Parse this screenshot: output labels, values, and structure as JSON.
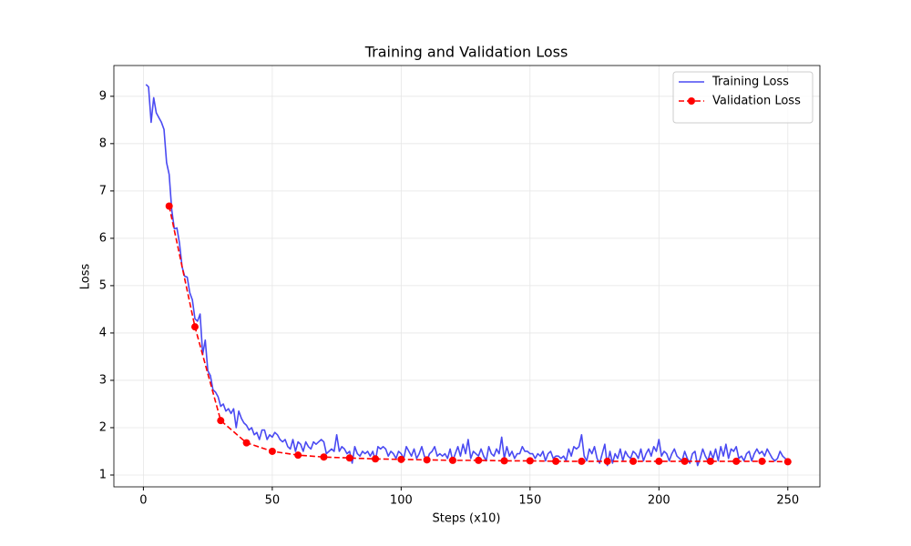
{
  "chart_data": {
    "type": "line",
    "title": "Training and Validation Loss",
    "xlabel": "Steps (x10)",
    "ylabel": "Loss",
    "xlim": [
      -11.45,
      262.45
    ],
    "ylim": [
      0.75,
      9.65
    ],
    "xticks": [
      0,
      50,
      100,
      150,
      200,
      250
    ],
    "yticks": [
      1,
      2,
      3,
      4,
      5,
      6,
      7,
      8,
      9
    ],
    "grid": true,
    "legend": "upper right",
    "series": [
      {
        "name": "Training Loss",
        "color": "#4a4af2",
        "linestyle": "solid",
        "x": [
          1,
          2,
          3,
          4,
          5,
          6,
          7,
          8,
          9,
          10,
          11,
          12,
          13,
          14,
          15,
          16,
          17,
          18,
          19,
          20,
          21,
          22,
          23,
          24,
          25,
          26,
          27,
          28,
          29,
          30,
          31,
          32,
          33,
          34,
          35,
          36,
          37,
          38,
          39,
          40,
          41,
          42,
          43,
          44,
          45,
          46,
          47,
          48,
          49,
          50,
          51,
          52,
          53,
          54,
          55,
          56,
          57,
          58,
          59,
          60,
          61,
          62,
          63,
          64,
          65,
          66,
          67,
          68,
          69,
          70,
          71,
          72,
          73,
          74,
          75,
          76,
          77,
          78,
          79,
          80,
          81,
          82,
          83,
          84,
          85,
          86,
          87,
          88,
          89,
          90,
          91,
          92,
          93,
          94,
          95,
          96,
          97,
          98,
          99,
          100,
          101,
          102,
          103,
          104,
          105,
          106,
          107,
          108,
          109,
          110,
          111,
          112,
          113,
          114,
          115,
          116,
          117,
          118,
          119,
          120,
          121,
          122,
          123,
          124,
          125,
          126,
          127,
          128,
          129,
          130,
          131,
          132,
          133,
          134,
          135,
          136,
          137,
          138,
          139,
          140,
          141,
          142,
          143,
          144,
          145,
          146,
          147,
          148,
          149,
          150,
          151,
          152,
          153,
          154,
          155,
          156,
          157,
          158,
          159,
          160,
          161,
          162,
          163,
          164,
          165,
          166,
          167,
          168,
          169,
          170,
          171,
          172,
          173,
          174,
          175,
          176,
          177,
          178,
          179,
          180,
          181,
          182,
          183,
          184,
          185,
          186,
          187,
          188,
          189,
          190,
          191,
          192,
          193,
          194,
          195,
          196,
          197,
          198,
          199,
          200,
          201,
          202,
          203,
          204,
          205,
          206,
          207,
          208,
          209,
          210,
          211,
          212,
          213,
          214,
          215,
          216,
          217,
          218,
          219,
          220,
          221,
          222,
          223,
          224,
          225,
          226,
          227,
          228,
          229,
          230,
          231,
          232,
          233,
          234,
          235,
          236,
          237,
          238,
          239,
          240,
          241,
          242,
          243,
          244,
          245,
          246,
          247,
          248,
          249,
          250
        ],
        "values": [
          9.25,
          9.2,
          8.45,
          8.97,
          8.65,
          8.55,
          8.45,
          8.3,
          7.6,
          7.35,
          6.6,
          6.2,
          6.22,
          5.9,
          5.4,
          5.2,
          5.18,
          4.85,
          4.7,
          4.3,
          4.25,
          4.4,
          3.55,
          3.85,
          3.2,
          3.1,
          2.8,
          2.75,
          2.65,
          2.45,
          2.5,
          2.35,
          2.4,
          2.3,
          2.4,
          2.0,
          2.35,
          2.2,
          2.1,
          2.05,
          1.95,
          2.0,
          1.85,
          1.9,
          1.75,
          1.95,
          1.95,
          1.75,
          1.85,
          1.8,
          1.9,
          1.85,
          1.75,
          1.7,
          1.75,
          1.6,
          1.55,
          1.75,
          1.5,
          1.7,
          1.65,
          1.5,
          1.7,
          1.6,
          1.55,
          1.7,
          1.65,
          1.7,
          1.75,
          1.7,
          1.45,
          1.5,
          1.55,
          1.5,
          1.85,
          1.5,
          1.6,
          1.55,
          1.45,
          1.5,
          1.25,
          1.6,
          1.45,
          1.4,
          1.5,
          1.45,
          1.5,
          1.4,
          1.5,
          1.3,
          1.6,
          1.55,
          1.6,
          1.55,
          1.4,
          1.5,
          1.45,
          1.35,
          1.5,
          1.45,
          1.35,
          1.6,
          1.5,
          1.4,
          1.55,
          1.35,
          1.45,
          1.6,
          1.4,
          1.3,
          1.45,
          1.5,
          1.6,
          1.4,
          1.45,
          1.4,
          1.45,
          1.35,
          1.55,
          1.3,
          1.45,
          1.6,
          1.4,
          1.65,
          1.45,
          1.75,
          1.35,
          1.5,
          1.45,
          1.4,
          1.55,
          1.4,
          1.3,
          1.6,
          1.45,
          1.4,
          1.55,
          1.45,
          1.8,
          1.35,
          1.6,
          1.4,
          1.5,
          1.35,
          1.45,
          1.45,
          1.6,
          1.5,
          1.5,
          1.45,
          1.45,
          1.35,
          1.45,
          1.4,
          1.5,
          1.3,
          1.45,
          1.5,
          1.35,
          1.4,
          1.4,
          1.35,
          1.4,
          1.3,
          1.55,
          1.4,
          1.6,
          1.55,
          1.6,
          1.85,
          1.4,
          1.3,
          1.55,
          1.45,
          1.6,
          1.35,
          1.25,
          1.45,
          1.65,
          1.2,
          1.5,
          1.25,
          1.45,
          1.35,
          1.55,
          1.3,
          1.5,
          1.4,
          1.35,
          1.5,
          1.45,
          1.35,
          1.55,
          1.3,
          1.45,
          1.55,
          1.4,
          1.6,
          1.5,
          1.75,
          1.4,
          1.5,
          1.45,
          1.3,
          1.45,
          1.55,
          1.4,
          1.35,
          1.3,
          1.5,
          1.35,
          1.25,
          1.45,
          1.5,
          1.2,
          1.35,
          1.55,
          1.4,
          1.3,
          1.5,
          1.35,
          1.55,
          1.3,
          1.6,
          1.4,
          1.65,
          1.35,
          1.55,
          1.5,
          1.6,
          1.35,
          1.4,
          1.3,
          1.45,
          1.5,
          1.3,
          1.45,
          1.55,
          1.45,
          1.5,
          1.4,
          1.55,
          1.45,
          1.35,
          1.3,
          1.35,
          1.5,
          1.4,
          1.35,
          1.3
        ]
      },
      {
        "name": "Validation Loss",
        "color": "#ff0000",
        "linestyle": "dashed",
        "marker": "o",
        "x": [
          10,
          20,
          30,
          40,
          50,
          60,
          70,
          80,
          90,
          100,
          110,
          120,
          130,
          140,
          150,
          160,
          170,
          180,
          190,
          200,
          210,
          220,
          230,
          240,
          250
        ],
        "values": [
          6.68,
          4.13,
          2.15,
          1.68,
          1.5,
          1.42,
          1.38,
          1.36,
          1.34,
          1.33,
          1.32,
          1.31,
          1.31,
          1.3,
          1.3,
          1.29,
          1.29,
          1.29,
          1.29,
          1.29,
          1.29,
          1.29,
          1.29,
          1.29,
          1.28
        ]
      }
    ]
  }
}
